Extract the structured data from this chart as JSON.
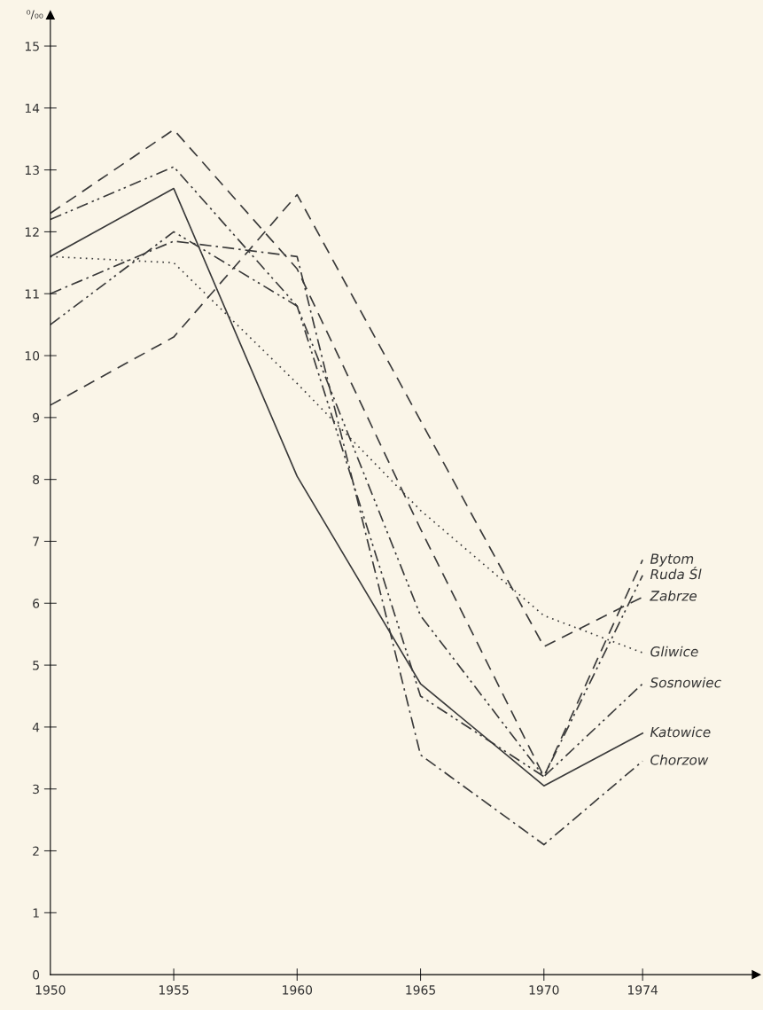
{
  "chart_data": {
    "type": "line",
    "ylabel": "⁰/₀₀",
    "x": [
      1950,
      1955,
      1960,
      1965,
      1970,
      1974
    ],
    "xlim": [
      1950,
      1978.6
    ],
    "xticks": [
      1950,
      1955,
      1960,
      1965,
      1970,
      1974
    ],
    "ylim": [
      0,
      15.5
    ],
    "yticks": [
      0,
      1,
      2,
      3,
      4,
      5,
      6,
      7,
      8,
      9,
      10,
      11,
      12,
      13,
      14,
      15
    ],
    "grid": false,
    "legend": false,
    "series": [
      {
        "name": "Bytom",
        "color": "#3a3a3a",
        "line_style": "dashed",
        "values": [
          12.3,
          13.65,
          11.4,
          7.2,
          3.2,
          6.7
        ]
      },
      {
        "name": "Ruda Śl",
        "color": "#3a3a3a",
        "line_style": "dashdotdot",
        "values": [
          12.2,
          13.05,
          10.8,
          4.5,
          3.2,
          6.45
        ]
      },
      {
        "name": "Zabrze",
        "color": "#3a3a3a",
        "line_style": "dashed",
        "x": [
          1950,
          1955,
          1960,
          1970,
          1974
        ],
        "values": [
          9.2,
          10.3,
          12.6,
          5.3,
          6.1
        ]
      },
      {
        "name": "Gliwice",
        "color": "#3a3a3a",
        "line_style": "dotted",
        "values": [
          11.6,
          11.5,
          9.55,
          7.5,
          5.8,
          5.2
        ]
      },
      {
        "name": "Sosnowiec",
        "color": "#3a3a3a",
        "line_style": "dashdotdot",
        "values": [
          10.5,
          12.0,
          10.8,
          5.8,
          3.2,
          4.7
        ]
      },
      {
        "name": "Katowice",
        "color": "#3a3a3a",
        "line_style": "solid",
        "values": [
          11.6,
          12.7,
          8.05,
          4.7,
          3.05,
          3.9
        ]
      },
      {
        "name": "Chorzow",
        "color": "#3a3a3a",
        "line_style": "dashdot",
        "values": [
          11.0,
          11.85,
          11.6,
          3.55,
          2.1,
          3.45
        ]
      }
    ]
  }
}
